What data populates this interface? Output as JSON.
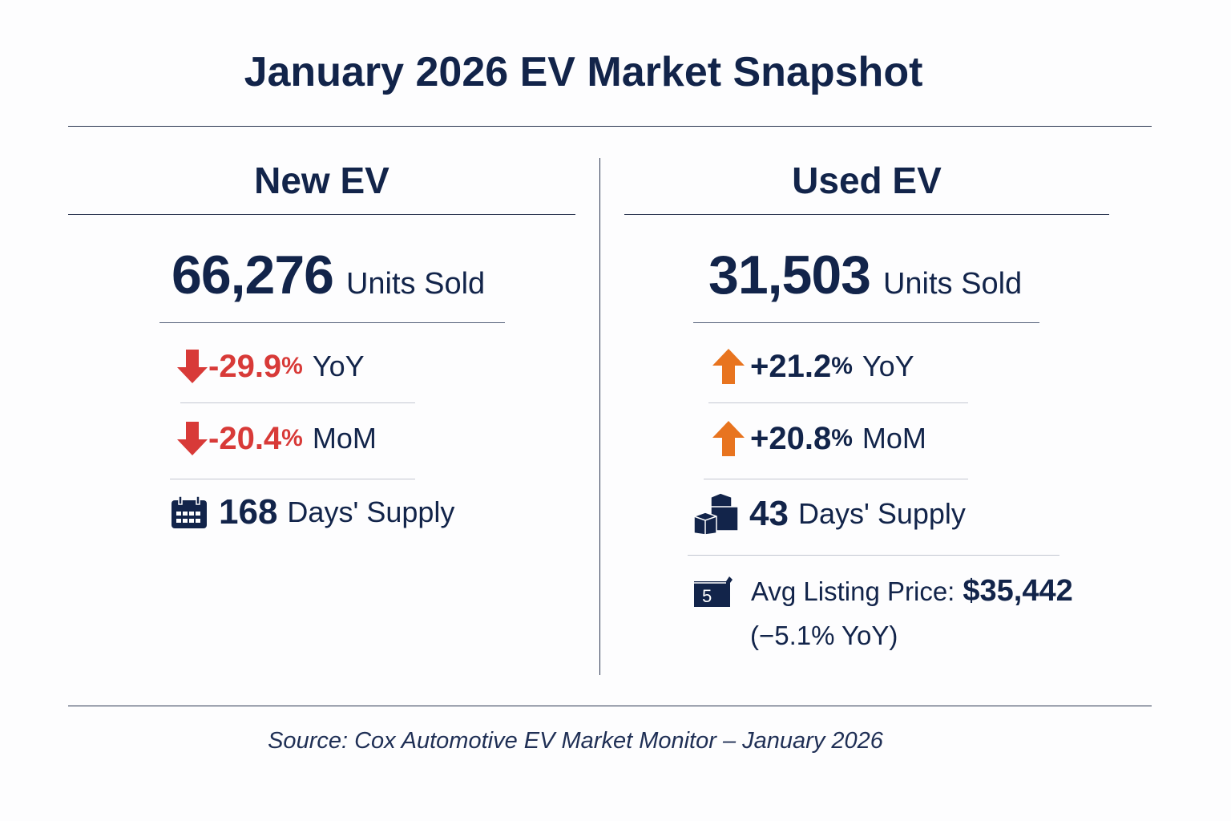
{
  "title": "January 2026 EV Market Snapshot",
  "colors": {
    "navy": "#12244a",
    "down": "#d83a38",
    "up": "#e8741f"
  },
  "new_ev": {
    "heading": "New EV",
    "units": "66,276",
    "units_label": "Units Sold",
    "yoy": {
      "icon": "arrow-down-icon",
      "value": "-29.9",
      "pct": "%",
      "label": "YoY"
    },
    "mom": {
      "icon": "arrow-down-icon",
      "value": "-20.4",
      "pct": "%",
      "label": "MoM"
    },
    "supply": {
      "icon": "calendar-icon",
      "value": "168",
      "label": "Days' Supply"
    }
  },
  "used_ev": {
    "heading": "Used EV",
    "units": "31,503",
    "units_label": "Units Sold",
    "yoy": {
      "icon": "arrow-up-icon",
      "value": "+21.2",
      "pct": "%",
      "label": "YoY"
    },
    "mom": {
      "icon": "arrow-up-icon",
      "value": "+20.8",
      "pct": "%",
      "label": "MoM"
    },
    "supply": {
      "icon": "boxes-icon",
      "value": "43",
      "label": "Days' Supply"
    },
    "price": {
      "icon": "price-tag-icon",
      "icon_text": "5",
      "label": "Avg Listing Price:",
      "value": "$35,442",
      "change": "(−5.1% YoY)"
    }
  },
  "source": "Source: Cox Automotive EV Market Monitor – January 2026"
}
